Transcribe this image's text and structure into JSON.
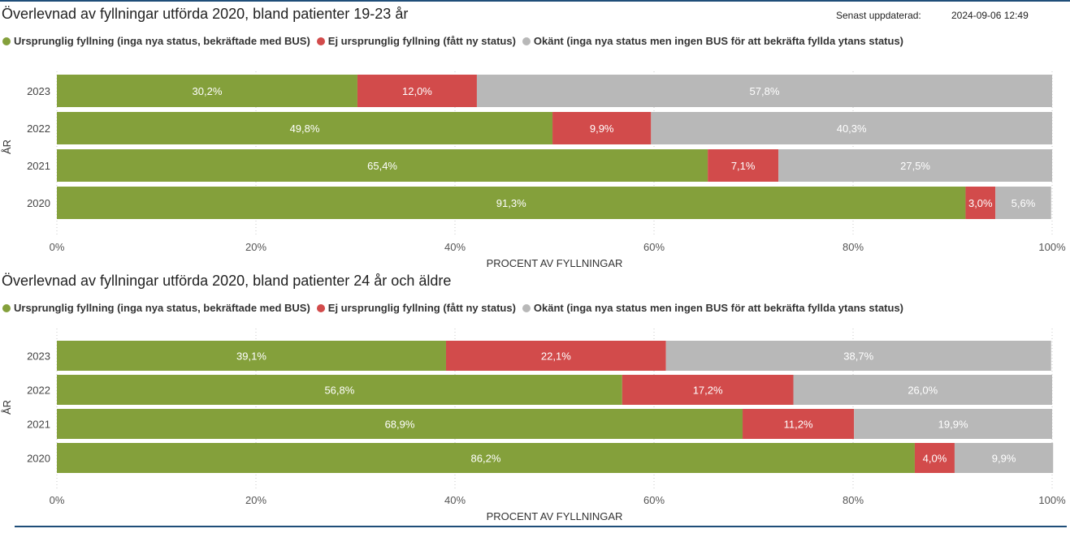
{
  "updated": {
    "label": "Senast uppdaterad:",
    "value": "2024-09-06 12:49"
  },
  "legend": [
    {
      "label": "Ursprunglig fyllning (inga nya status, bekräftade med BUS)",
      "color": "#84a03b"
    },
    {
      "label": "Ej ursprunglig fyllning (fått ny status)",
      "color": "#d24b4b"
    },
    {
      "label": "Okänt (inga nya status men ingen BUS för att bekräfta fyllda ytans status)",
      "color": "#b8b8b8"
    }
  ],
  "chart_data": [
    {
      "type": "bar",
      "orientation": "horizontal",
      "stacked": "100%",
      "title": "Överlevnad av fyllningar utförda 2020, bland patienter 19-23 år",
      "xlabel": "PROCENT AV FYLLNINGAR",
      "ylabel": "ÅR",
      "xlim": [
        0,
        100
      ],
      "xticks": [
        "0%",
        "20%",
        "40%",
        "60%",
        "80%",
        "100%"
      ],
      "grid": true,
      "legend_position": "top",
      "categories": [
        "2023",
        "2022",
        "2021",
        "2020"
      ],
      "series": [
        {
          "name": "Ursprunglig fyllning (inga nya status, bekräftade med BUS)",
          "color": "#84a03b",
          "values": [
            30.2,
            49.8,
            65.4,
            91.3
          ],
          "labels": [
            "30,2%",
            "49,8%",
            "65,4%",
            "91,3%"
          ]
        },
        {
          "name": "Ej ursprunglig fyllning (fått ny status)",
          "color": "#d24b4b",
          "values": [
            12.0,
            9.9,
            7.1,
            3.0
          ],
          "labels": [
            "12,0%",
            "9,9%",
            "7,1%",
            "3,0%"
          ]
        },
        {
          "name": "Okänt (inga nya status men ingen BUS för att bekräfta fyllda ytans status)",
          "color": "#b8b8b8",
          "values": [
            57.8,
            40.3,
            27.5,
            5.6
          ],
          "labels": [
            "57,8%",
            "40,3%",
            "27,5%",
            "5,6%"
          ]
        }
      ]
    },
    {
      "type": "bar",
      "orientation": "horizontal",
      "stacked": "100%",
      "title": "Överlevnad av fyllningar utförda 2020, bland patienter 24 år och äldre",
      "xlabel": "PROCENT AV FYLLNINGAR",
      "ylabel": "ÅR",
      "xlim": [
        0,
        100
      ],
      "xticks": [
        "0%",
        "20%",
        "40%",
        "60%",
        "80%",
        "100%"
      ],
      "grid": true,
      "legend_position": "top",
      "categories": [
        "2023",
        "2022",
        "2021",
        "2020"
      ],
      "series": [
        {
          "name": "Ursprunglig fyllning (inga nya status, bekräftade med BUS)",
          "color": "#84a03b",
          "values": [
            39.1,
            56.8,
            68.9,
            86.2
          ],
          "labels": [
            "39,1%",
            "56,8%",
            "68,9%",
            "86,2%"
          ]
        },
        {
          "name": "Ej ursprunglig fyllning (fått ny status)",
          "color": "#d24b4b",
          "values": [
            22.1,
            17.2,
            11.2,
            4.0
          ],
          "labels": [
            "22,1%",
            "17,2%",
            "11,2%",
            "4,0%"
          ]
        },
        {
          "name": "Okänt (inga nya status men ingen BUS för att bekräfta fyllda ytans status)",
          "color": "#b8b8b8",
          "values": [
            38.7,
            26.0,
            19.9,
            9.9
          ],
          "labels": [
            "38,7%",
            "26,0%",
            "19,9%",
            "9,9%"
          ]
        }
      ]
    }
  ]
}
